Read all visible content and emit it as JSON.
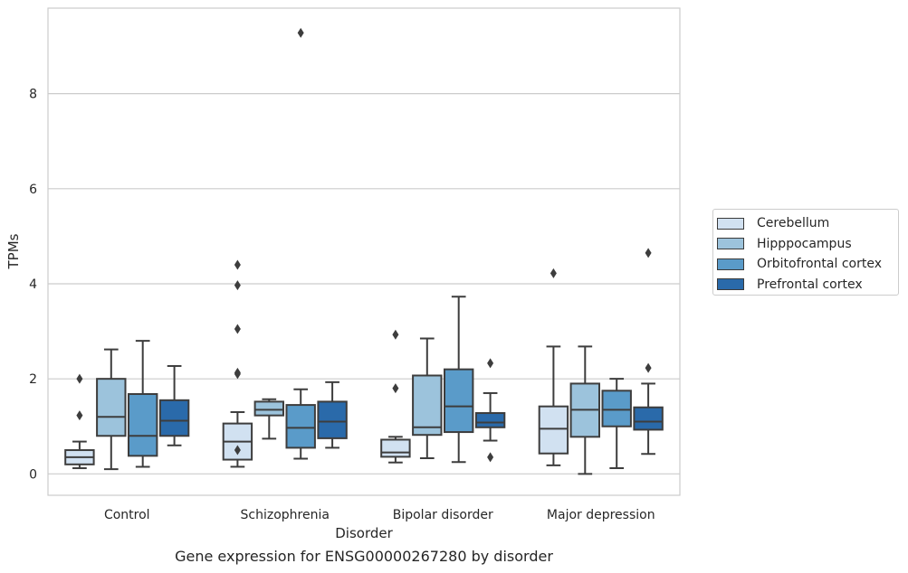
{
  "chart_data": {
    "type": "box",
    "title": "",
    "caption": "Gene expression for ENSG00000267280 by disorder",
    "xlabel": "Disorder",
    "ylabel": "TPMs",
    "ylim": [
      -0.45,
      9.8
    ],
    "yticks": [
      0,
      2,
      4,
      6,
      8
    ],
    "grid": "horizontal",
    "legend_position": "right",
    "categories": [
      "Control",
      "Schizophrenia",
      "Bipolar disorder",
      "Major depression"
    ],
    "series": [
      {
        "name": "Cerebellum",
        "color": "#d1e1f1",
        "boxes": [
          {
            "whislo": 0.12,
            "q1": 0.2,
            "med": 0.35,
            "q3": 0.5,
            "whishi": 0.68,
            "fliers": [
              2.0,
              1.23
            ]
          },
          {
            "whislo": 0.15,
            "q1": 0.3,
            "med": 0.68,
            "q3": 1.06,
            "whishi": 1.3,
            "fliers": [
              4.4,
              3.97,
              3.05,
              2.13,
              2.1,
              0.5
            ]
          },
          {
            "whislo": 0.24,
            "q1": 0.36,
            "med": 0.45,
            "q3": 0.72,
            "whishi": 0.78,
            "fliers": [
              2.93,
              1.8
            ]
          },
          {
            "whislo": 0.18,
            "q1": 0.43,
            "med": 0.95,
            "q3": 1.42,
            "whishi": 2.68,
            "fliers": [
              4.22
            ]
          }
        ]
      },
      {
        "name": "Hipppocampus",
        "color": "#9cc3dc",
        "boxes": [
          {
            "whislo": 0.1,
            "q1": 0.8,
            "med": 1.2,
            "q3": 2.0,
            "whishi": 2.62,
            "fliers": []
          },
          {
            "whislo": 0.74,
            "q1": 1.23,
            "med": 1.35,
            "q3": 1.52,
            "whishi": 1.57,
            "fliers": []
          },
          {
            "whislo": 0.33,
            "q1": 0.82,
            "med": 0.98,
            "q3": 2.07,
            "whishi": 2.85,
            "fliers": []
          },
          {
            "whislo": 0.0,
            "q1": 0.78,
            "med": 1.35,
            "q3": 1.9,
            "whishi": 2.68,
            "fliers": []
          }
        ]
      },
      {
        "name": "Orbitofrontal cortex",
        "color": "#5a9bc9",
        "boxes": [
          {
            "whislo": 0.15,
            "q1": 0.38,
            "med": 0.8,
            "q3": 1.68,
            "whishi": 2.8,
            "fliers": []
          },
          {
            "whislo": 0.32,
            "q1": 0.55,
            "med": 0.97,
            "q3": 1.45,
            "whishi": 1.78,
            "fliers": [
              9.28
            ]
          },
          {
            "whislo": 0.25,
            "q1": 0.88,
            "med": 1.42,
            "q3": 2.2,
            "whishi": 3.73,
            "fliers": []
          },
          {
            "whislo": 0.12,
            "q1": 1.0,
            "med": 1.35,
            "q3": 1.75,
            "whishi": 2.0,
            "fliers": []
          }
        ]
      },
      {
        "name": "Prefrontal cortex",
        "color": "#2a6aaa",
        "boxes": [
          {
            "whislo": 0.6,
            "q1": 0.8,
            "med": 1.12,
            "q3": 1.55,
            "whishi": 2.27,
            "fliers": []
          },
          {
            "whislo": 0.55,
            "q1": 0.75,
            "med": 1.1,
            "q3": 1.52,
            "whishi": 1.93,
            "fliers": []
          },
          {
            "whislo": 0.7,
            "q1": 0.98,
            "med": 1.08,
            "q3": 1.28,
            "whishi": 1.7,
            "fliers": [
              2.33,
              0.35
            ]
          },
          {
            "whislo": 0.42,
            "q1": 0.93,
            "med": 1.1,
            "q3": 1.4,
            "whishi": 1.9,
            "fliers": [
              4.65,
              2.23
            ]
          }
        ]
      }
    ]
  }
}
